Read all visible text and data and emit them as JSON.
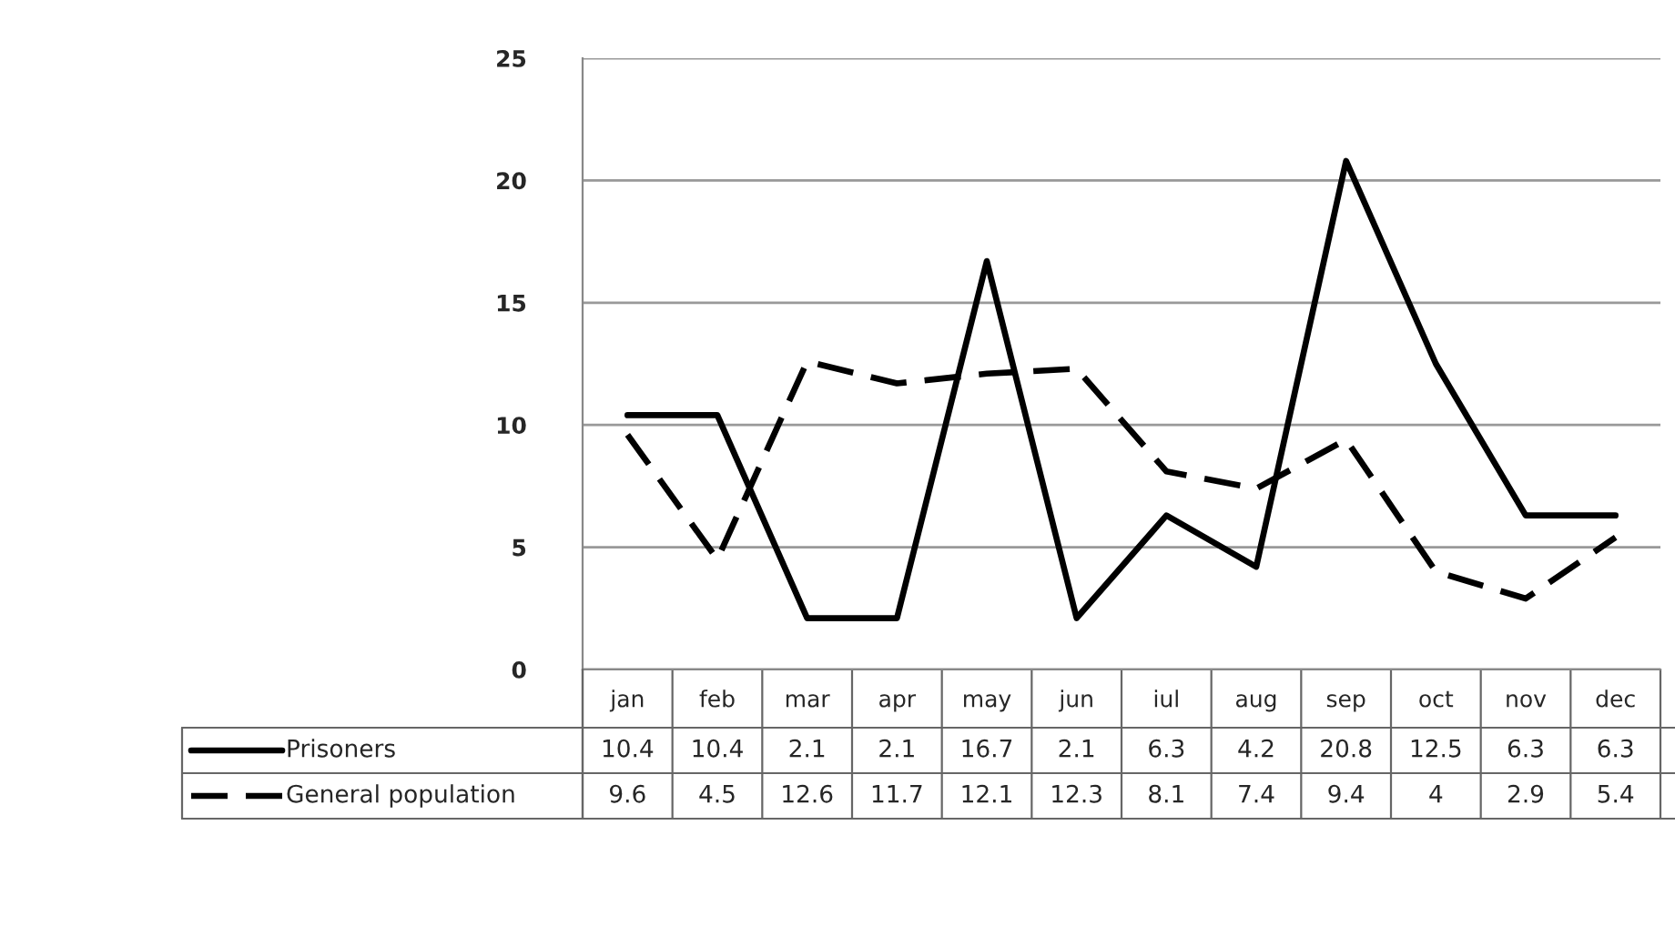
{
  "chart_data": {
    "type": "line",
    "categories": [
      "jan",
      "feb",
      "mar",
      "apr",
      "may",
      "jun",
      "iul",
      "aug",
      "sep",
      "oct",
      "nov",
      "dec"
    ],
    "series": [
      {
        "name": "Prisoners",
        "color": "#000000",
        "line_style": "solid",
        "values": [
          10.4,
          10.4,
          2.1,
          2.1,
          16.7,
          2.1,
          6.3,
          4.2,
          20.8,
          12.5,
          6.3,
          6.3
        ]
      },
      {
        "name": "General population",
        "color": "#000000",
        "line_style": "dashed",
        "values": [
          9.6,
          4.5,
          12.6,
          11.7,
          12.1,
          12.3,
          8.1,
          7.4,
          9.4,
          4,
          2.9,
          5.4
        ]
      }
    ],
    "ylim": [
      0,
      25
    ],
    "yticks": [
      0,
      5,
      10,
      15,
      20,
      25
    ],
    "grid": "y",
    "legend": "bottom",
    "data_labels": true,
    "marker": "none"
  }
}
